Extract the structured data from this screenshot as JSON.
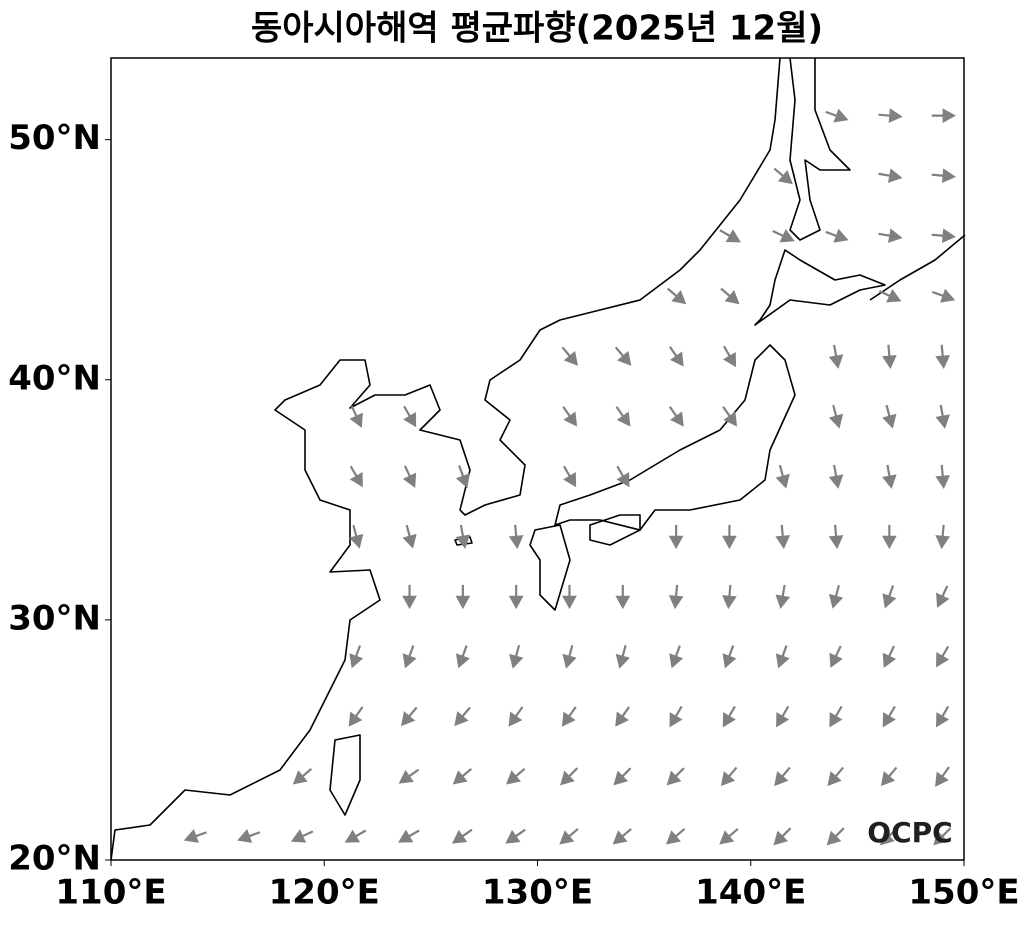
{
  "chart_data": {
    "type": "vector-map",
    "title": "동아시아해역 평균파향(2025년 12월)",
    "watermark": "OCPC",
    "xlim": [
      110,
      150
    ],
    "ylim": [
      20,
      53.4
    ],
    "xticks": [
      {
        "value": 110,
        "label": "110°E"
      },
      {
        "value": 120,
        "label": "120°E"
      },
      {
        "value": 130,
        "label": "130°E"
      },
      {
        "value": 140,
        "label": "140°E"
      },
      {
        "value": 150,
        "label": "150°E"
      }
    ],
    "yticks": [
      {
        "value": 20,
        "label": "20°N"
      },
      {
        "value": 30,
        "label": "30°N"
      },
      {
        "value": 40,
        "label": "40°N"
      },
      {
        "value": 50,
        "label": "50°N"
      }
    ],
    "arrow_color": "#808080",
    "lons": [
      111.5,
      114,
      116.5,
      119,
      121.5,
      124,
      126.5,
      129,
      131.5,
      134,
      136.5,
      139,
      141.5,
      144,
      146.5,
      149
    ],
    "lats": [
      21,
      23.5,
      26,
      28.5,
      31,
      33.5,
      36,
      38.5,
      41,
      43.5,
      46,
      48.5,
      51
    ],
    "directions": [
      [
        null,
        250,
        250,
        245,
        240,
        240,
        235,
        235,
        230,
        230,
        230,
        230,
        225,
        225,
        225,
        225
      ],
      [
        null,
        null,
        null,
        230,
        null,
        235,
        230,
        230,
        225,
        225,
        225,
        220,
        220,
        220,
        220,
        215
      ],
      [
        null,
        null,
        null,
        null,
        215,
        220,
        220,
        215,
        215,
        215,
        210,
        210,
        210,
        210,
        210,
        210
      ],
      [
        null,
        null,
        null,
        null,
        200,
        200,
        200,
        195,
        195,
        195,
        200,
        200,
        200,
        205,
        205,
        210
      ],
      [
        null,
        null,
        null,
        null,
        null,
        180,
        180,
        180,
        180,
        180,
        185,
        185,
        190,
        195,
        200,
        205
      ],
      [
        null,
        null,
        null,
        null,
        165,
        165,
        170,
        175,
        null,
        null,
        180,
        180,
        175,
        175,
        180,
        185
      ],
      [
        null,
        null,
        null,
        null,
        150,
        155,
        160,
        null,
        150,
        150,
        null,
        null,
        165,
        170,
        170,
        175
      ],
      [
        null,
        null,
        null,
        null,
        155,
        150,
        null,
        null,
        145,
        145,
        145,
        145,
        null,
        165,
        165,
        170
      ],
      [
        null,
        null,
        null,
        null,
        null,
        null,
        null,
        null,
        140,
        140,
        145,
        150,
        null,
        170,
        175,
        175
      ],
      [
        null,
        null,
        null,
        null,
        null,
        null,
        null,
        null,
        null,
        null,
        130,
        130,
        null,
        null,
        115,
        110
      ],
      [
        null,
        null,
        null,
        null,
        null,
        null,
        null,
        null,
        null,
        null,
        null,
        120,
        115,
        110,
        100,
        95
      ],
      [
        null,
        null,
        null,
        null,
        null,
        null,
        null,
        null,
        null,
        null,
        null,
        null,
        130,
        null,
        100,
        95
      ],
      [
        null,
        null,
        null,
        null,
        null,
        null,
        null,
        null,
        null,
        null,
        null,
        null,
        null,
        110,
        95,
        90
      ]
    ]
  }
}
